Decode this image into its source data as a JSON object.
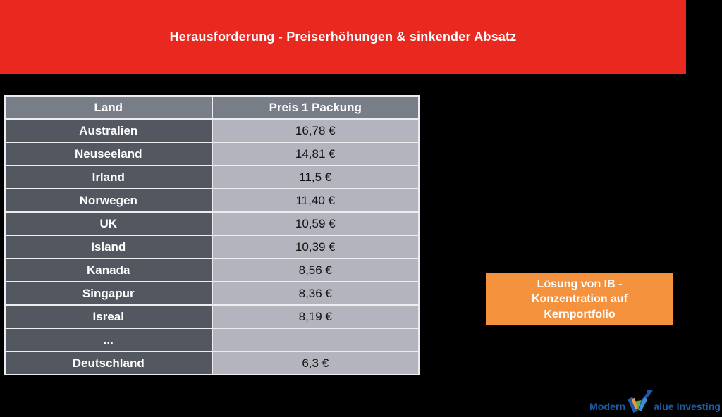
{
  "banner": {
    "title": "Herausforderung - Preiserhöhungen & sinkender Absatz",
    "bg_color": "#E9281F",
    "text_color": "#FFFFFF"
  },
  "table": {
    "headers": [
      "Land",
      "Preis 1 Packung"
    ],
    "rows": [
      {
        "land": "Australien",
        "preis": "16,78 €"
      },
      {
        "land": "Neuseeland",
        "preis": "14,81 €"
      },
      {
        "land": "Irland",
        "preis": "11,5 €"
      },
      {
        "land": "Norwegen",
        "preis": "11,40 €"
      },
      {
        "land": "UK",
        "preis": "10,59 €"
      },
      {
        "land": "Island",
        "preis": "10,39 €"
      },
      {
        "land": "Kanada",
        "preis": "8,56 €"
      },
      {
        "land": "Singapur",
        "preis": "8,36 €"
      },
      {
        "land": "Isreal",
        "preis": "8,19 €"
      },
      {
        "land": "...",
        "preis": ""
      },
      {
        "land": "Deutschland",
        "preis": "6,3 €"
      }
    ],
    "colors": {
      "header_bg": "#787E88",
      "land_bg": "#53575F",
      "preis_bg": "#B3B4BD",
      "grid": "#EDEDF0"
    }
  },
  "callout": {
    "lines": [
      "Lösung von IB -",
      "Konzentration auf",
      "Kernportfolio"
    ],
    "bg_color": "#F5923E",
    "text_color": "#FFFFFF"
  },
  "logo": {
    "text_before": "Modern",
    "text_after": "alue Investing",
    "full_name": "Modern Value Investing",
    "color": "#1A5EA8",
    "icon": "check-arrow-logo-icon",
    "icon_colors": {
      "outline": "#1E5AA8",
      "orange": "#F0953F",
      "green": "#62AE41",
      "blue": "#3F8FD8"
    }
  },
  "background_color": "#000000"
}
